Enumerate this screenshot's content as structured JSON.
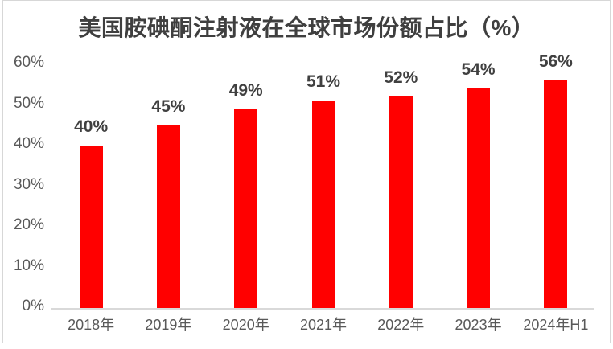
{
  "chart_data": {
    "type": "bar",
    "title": "美国胺碘酮注射液在全球市场份额占比（%）",
    "categories": [
      "2018年",
      "2019年",
      "2020年",
      "2021年",
      "2022年",
      "2023年",
      "2024年H1"
    ],
    "values": [
      40,
      45,
      49,
      51,
      52,
      54,
      56
    ],
    "data_labels": [
      "40%",
      "45%",
      "49%",
      "51%",
      "52%",
      "54%",
      "56%"
    ],
    "xlabel": "",
    "ylabel": "",
    "ylim": [
      0,
      60
    ],
    "y_tick_values": [
      0,
      10,
      20,
      30,
      40,
      50,
      60
    ],
    "y_tick_labels": [
      "0%",
      "10%",
      "20%",
      "30%",
      "40%",
      "50%",
      "60%"
    ],
    "grid": false,
    "legend": "none",
    "colors": {
      "bar": "#ff0000",
      "title_text": "#3f3f3f",
      "data_label_text": "#404040",
      "axis_tick_text": "#595959",
      "axis_line": "#d9d9d9",
      "frame_border": "#d7d7d7",
      "background": "#ffffff"
    }
  }
}
